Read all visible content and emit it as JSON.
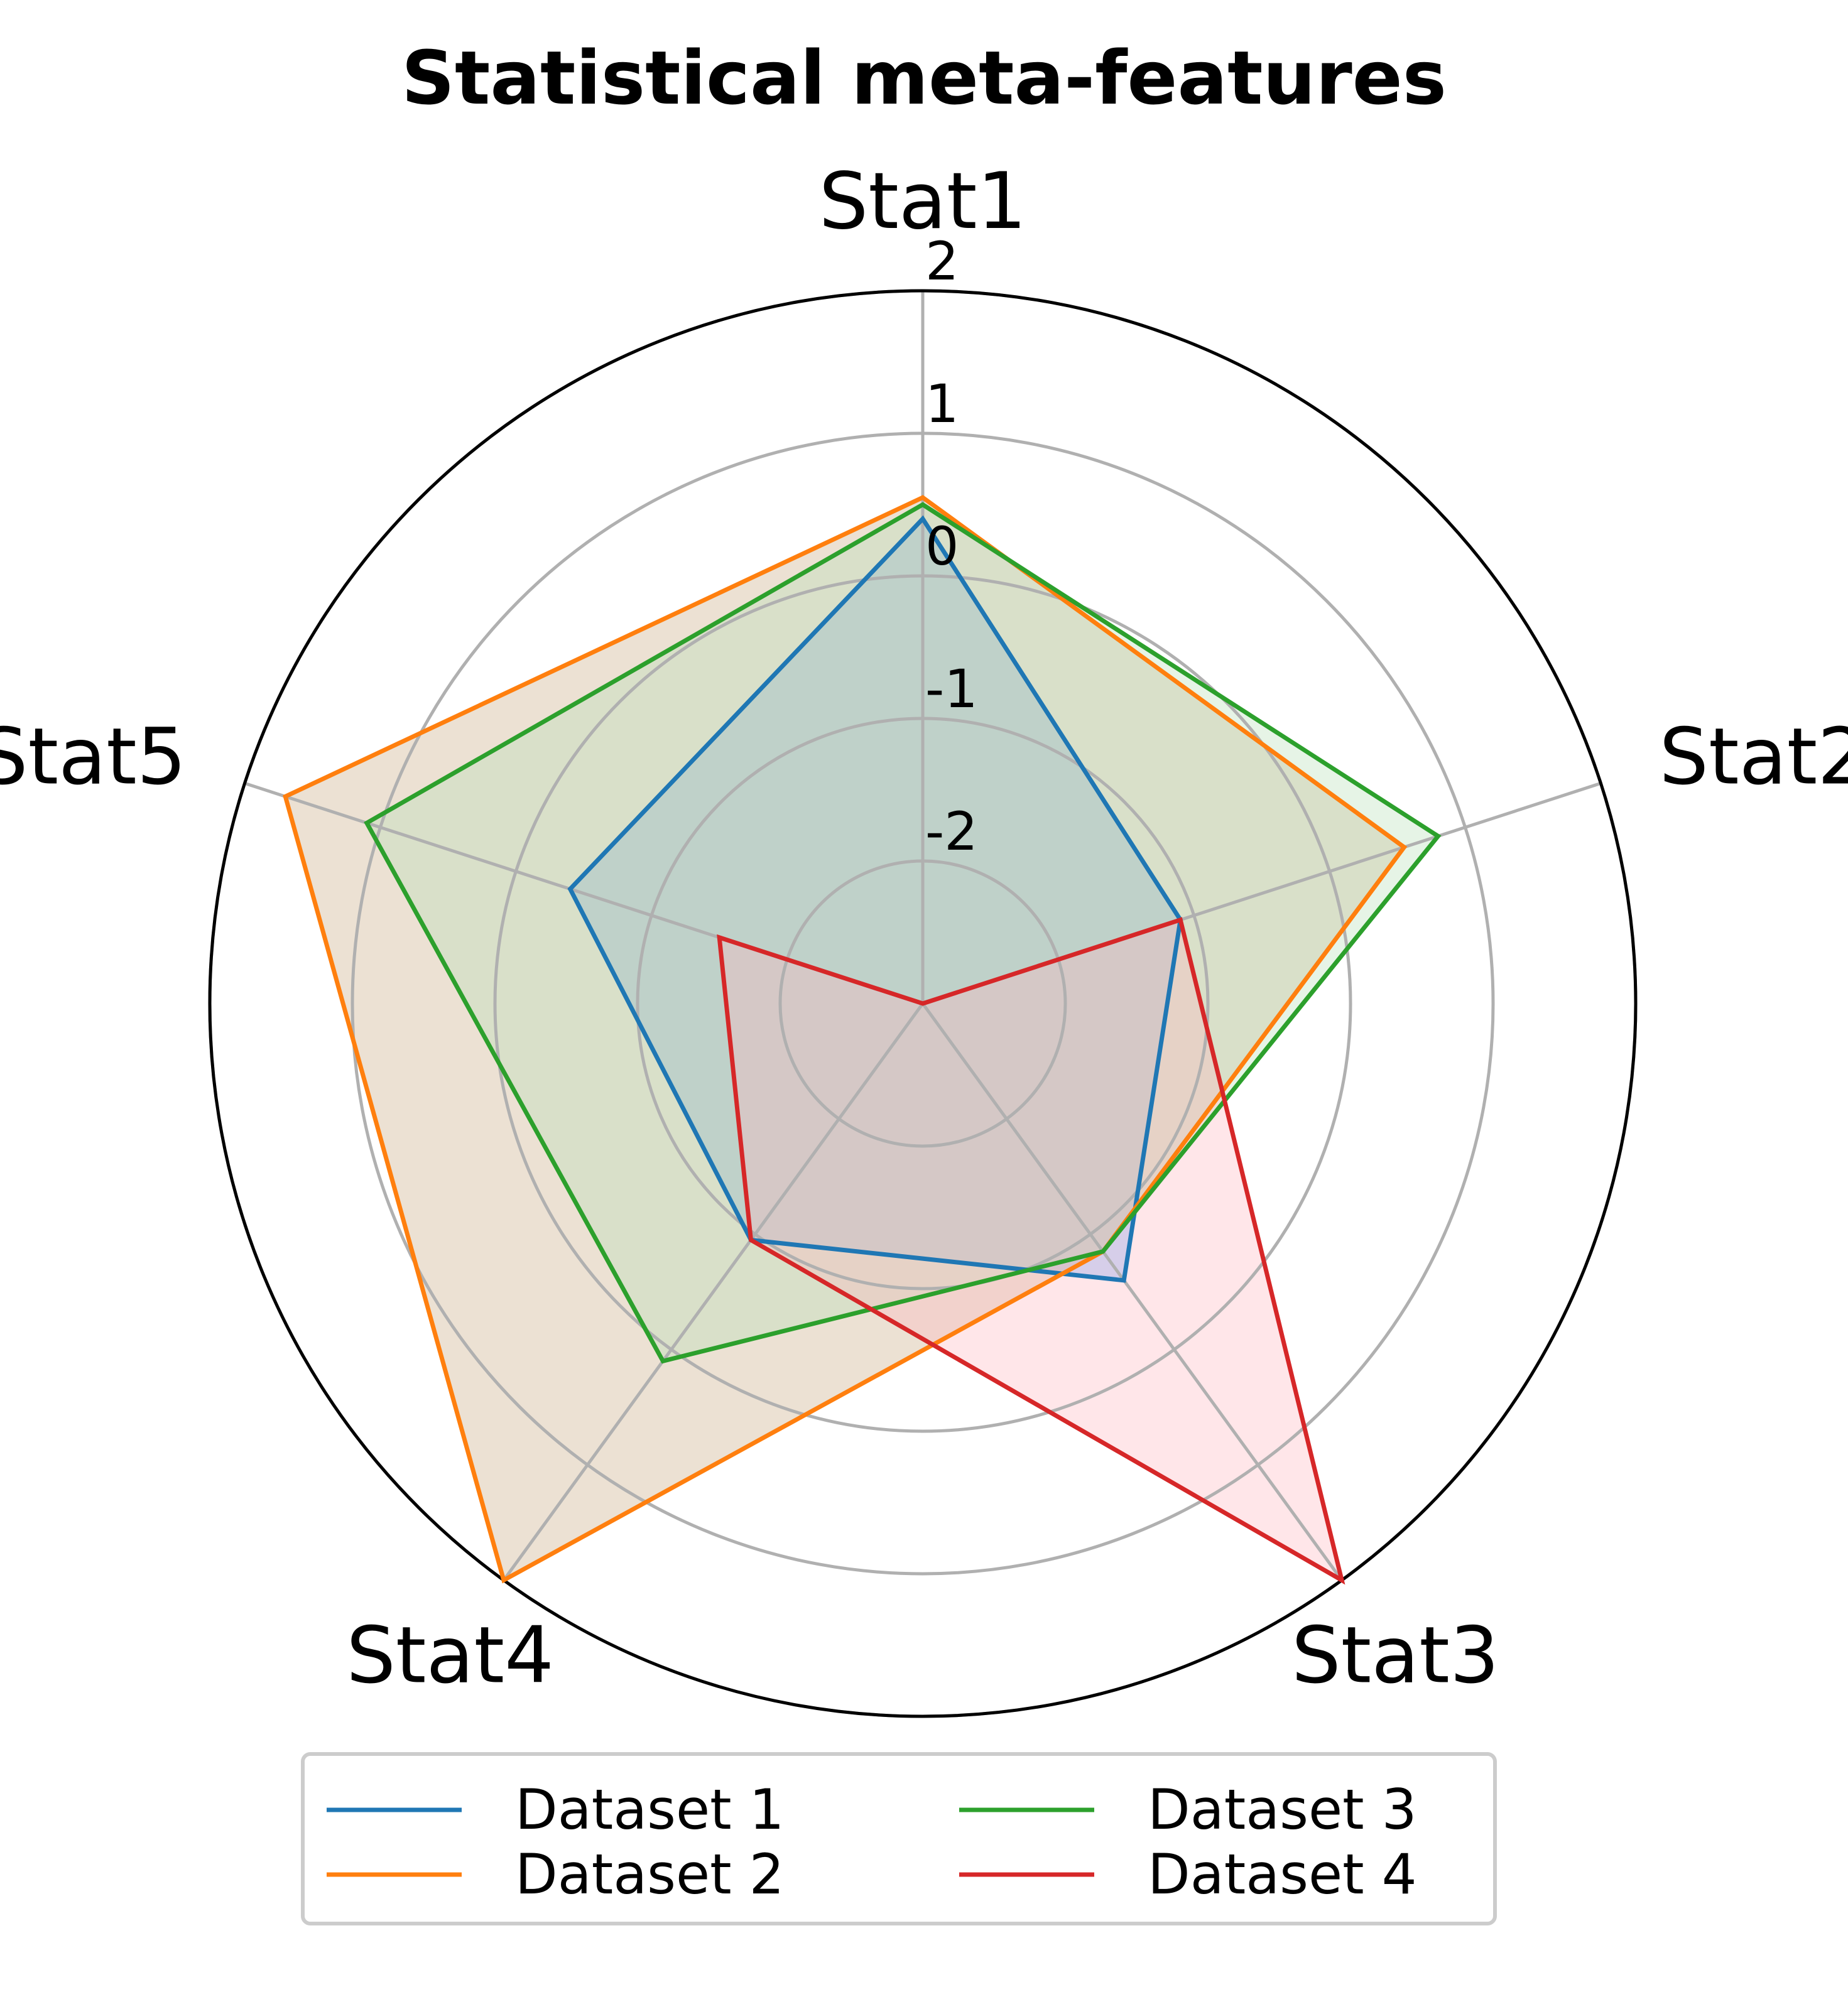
{
  "chart_data": {
    "type": "radar",
    "title": "Statistical meta-features",
    "axes": [
      "Stat1",
      "Stat2",
      "Stat3",
      "Stat4",
      "Stat5"
    ],
    "rlim": [
      -3,
      2
    ],
    "rticks": [
      2,
      1,
      0,
      -1,
      -2
    ],
    "rtick_labels": [
      "2",
      "1",
      "0",
      "-1",
      "-2"
    ],
    "grid": true,
    "legend_position": "bottom",
    "legend_columns": 2,
    "series": [
      {
        "name": "Dataset 1",
        "color": "#1f77b4",
        "fill": "#4d94ff",
        "values": [
          0.4,
          -1.1,
          -0.6,
          -0.95,
          -0.4
        ]
      },
      {
        "name": "Dataset 2",
        "color": "#ff7f0e",
        "fill": "#c8a882",
        "values": [
          0.55,
          0.55,
          -0.85,
          2.0,
          1.7
        ]
      },
      {
        "name": "Dataset 3",
        "color": "#2ca02c",
        "fill": "#b8e0b8",
        "values": [
          0.5,
          0.8,
          -0.85,
          0.1,
          1.1
        ]
      },
      {
        "name": "Dataset 4",
        "color": "#d62728",
        "fill": "#ffb8c0",
        "values": [
          -3.0,
          -1.1,
          2.0,
          -0.95,
          -1.5
        ]
      }
    ],
    "fill_colors_order_note_free": true
  }
}
